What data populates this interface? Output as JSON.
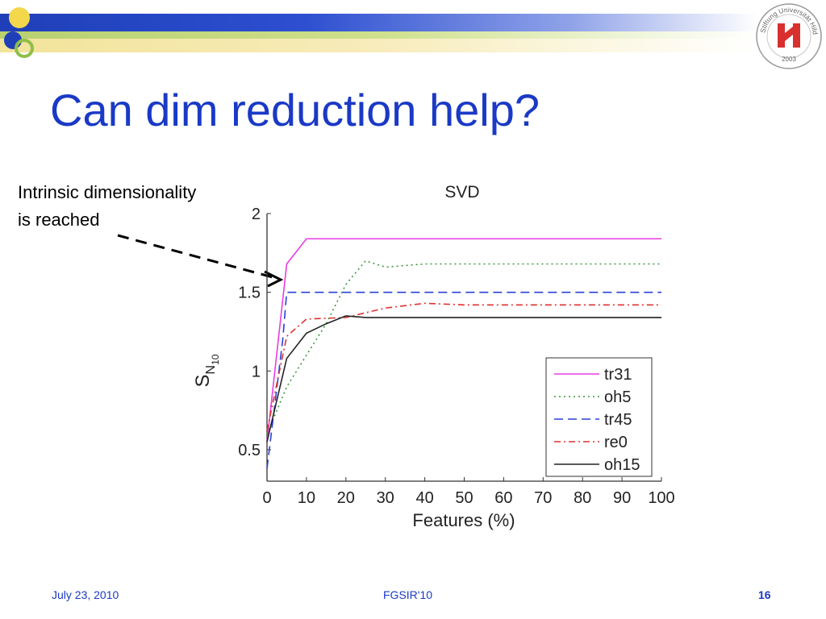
{
  "slide": {
    "title": "Can dim reduction help?",
    "annotation_lines": [
      "Intrinsic dimensionality",
      "is reached"
    ],
    "footer": {
      "date": "July 23, 2010",
      "conference": "FGSIR'10",
      "page": "16"
    },
    "logo_text": "Stiftung Universität Hildesheim",
    "logo_year": "2003",
    "colors": {
      "title": "#1a39c6",
      "band_blue": "#1f3fb8",
      "band_green": "#b8d070",
      "band_yellow": "#f2e39a",
      "logo_red": "#d8302f"
    }
  },
  "chart_data": {
    "type": "line",
    "title": "SVD",
    "xlabel": "Features (%)",
    "ylabel_base": "S",
    "ylabel_sub": "N",
    "ylabel_subsub": "10",
    "xlim": [
      0,
      100
    ],
    "ylim": [
      0.3,
      2
    ],
    "xticks": [
      0,
      10,
      20,
      30,
      40,
      50,
      60,
      70,
      80,
      90,
      100
    ],
    "yticks": [
      0.5,
      1,
      1.5,
      2
    ],
    "ytick_labels": [
      "0.5",
      "1",
      "1.5",
      "2"
    ],
    "legend_position": "bottom-right",
    "series": [
      {
        "name": "tr31",
        "color": "#e83de0",
        "dash": "solid",
        "x": [
          0,
          5,
          10,
          100
        ],
        "y": [
          0.55,
          1.68,
          1.84,
          1.84
        ]
      },
      {
        "name": "oh5",
        "color": "#3a9a3a",
        "dash": "dotted",
        "x": [
          0,
          5,
          10,
          15,
          20,
          25,
          30,
          40,
          50,
          100
        ],
        "y": [
          0.6,
          0.9,
          1.1,
          1.3,
          1.55,
          1.7,
          1.66,
          1.68,
          1.68,
          1.68
        ]
      },
      {
        "name": "tr45",
        "color": "#2a3fd8",
        "dash": "dashed",
        "x": [
          0,
          4,
          5,
          100
        ],
        "y": [
          0.38,
          1.2,
          1.5,
          1.5
        ]
      },
      {
        "name": "re0",
        "color": "#e03030",
        "dash": "dashdot",
        "x": [
          0,
          5,
          10,
          20,
          30,
          40,
          50,
          100
        ],
        "y": [
          0.62,
          1.22,
          1.33,
          1.34,
          1.4,
          1.43,
          1.42,
          1.42
        ]
      },
      {
        "name": "oh15",
        "color": "#222222",
        "dash": "solid",
        "x": [
          0,
          5,
          10,
          15,
          20,
          25,
          30,
          100
        ],
        "y": [
          0.55,
          1.08,
          1.24,
          1.3,
          1.35,
          1.34,
          1.34,
          1.34
        ]
      }
    ]
  }
}
